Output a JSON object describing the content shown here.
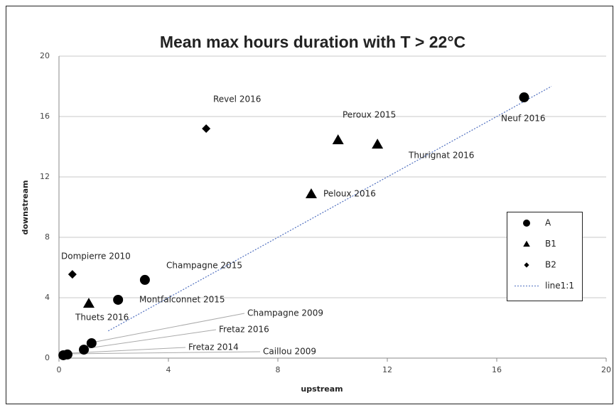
{
  "chart_data": {
    "type": "scatter",
    "title": "Mean max hours duration with T > 22°C",
    "x_label": "upstream",
    "y_label": "downstream",
    "xlim": [
      0,
      20
    ],
    "xticks": [
      0,
      4,
      8,
      12,
      16,
      20
    ],
    "ylim": [
      0,
      20
    ],
    "yticks": [
      0,
      4,
      8,
      12,
      16,
      20
    ],
    "grid": true,
    "legend": "right",
    "series": [
      {
        "name": "A",
        "color": "#000000",
        "marker": "circle",
        "x": [
          17.0,
          3.14,
          2.16,
          1.19,
          0.91,
          0.31,
          0.16
        ],
        "values": [
          17.27,
          5.18,
          3.86,
          0.99,
          0.56,
          0.24,
          0.19
        ],
        "labels": [
          "Neuf 2016",
          "Champagne 2015",
          "Montfalconnet 2015",
          "Champagne 2009",
          "Fretaz 2016",
          "Fretaz 2014",
          "Caillou 2009"
        ]
      },
      {
        "name": "B1",
        "color": "#000000",
        "marker": "triangle",
        "x": [
          10.2,
          11.64,
          9.22,
          1.09
        ],
        "values": [
          14.45,
          14.16,
          10.87,
          3.62
        ],
        "labels": [
          "Peroux 2015",
          "Thurignat 2016",
          "Peloux 2016",
          "Thuets 2016"
        ]
      },
      {
        "name": "B2",
        "color": "#000000",
        "marker": "diamond",
        "x": [
          5.38,
          0.49
        ],
        "values": [
          15.2,
          5.55
        ],
        "labels": [
          "Revel 2016",
          "Dompierre 2010"
        ]
      },
      {
        "name": "line1:1",
        "color": "#4f6fbf",
        "marker": "line",
        "x": [
          1.8,
          18
        ],
        "values": [
          1.8,
          18
        ]
      }
    ]
  }
}
